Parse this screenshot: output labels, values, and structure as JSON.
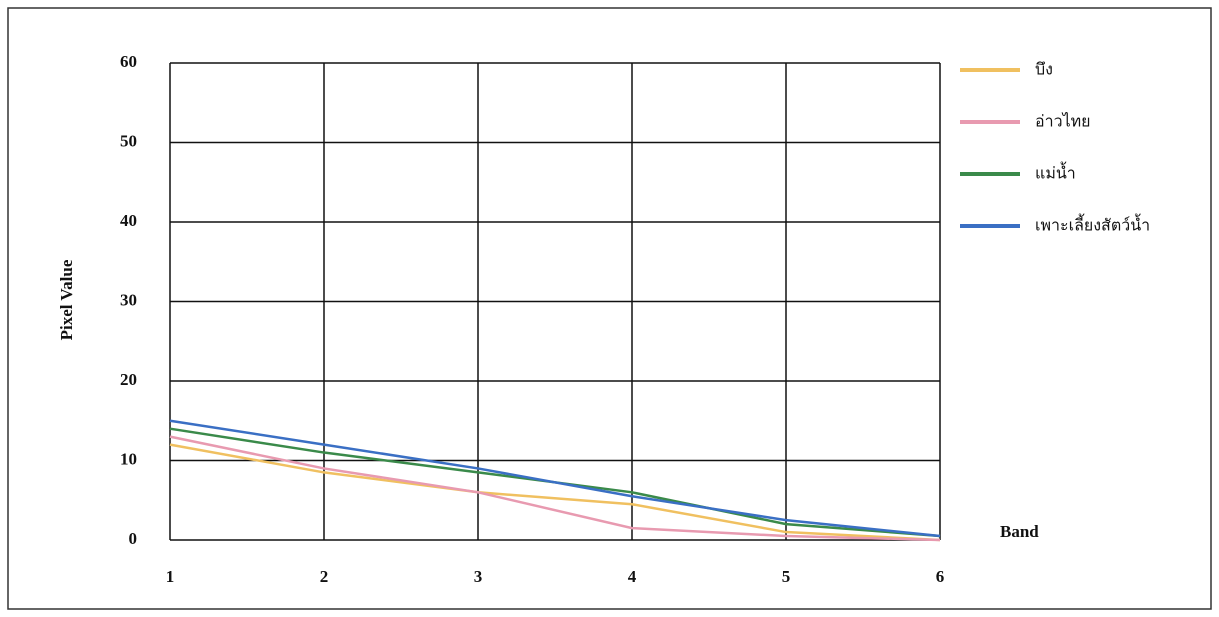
{
  "chart_data": {
    "type": "line",
    "x_label": "Band",
    "y_label": "Pixel Value",
    "x": [
      1,
      2,
      3,
      4,
      5,
      6
    ],
    "series": [
      {
        "name": "บึง",
        "color": "#f0c060",
        "values": [
          12,
          8.5,
          6,
          4.5,
          1,
          0
        ]
      },
      {
        "name": "อ่าวไทย",
        "color": "#e89ab0",
        "values": [
          13,
          9,
          6,
          1.5,
          0.5,
          0
        ]
      },
      {
        "name": "แม่น้ำ",
        "color": "#3a8a4a",
        "values": [
          14,
          11,
          8.5,
          6,
          2,
          0.5
        ]
      },
      {
        "name": "เพาะเลี้ยงสัตว์น้ำ",
        "color": "#3a6fc4",
        "values": [
          15,
          12,
          9,
          5.5,
          2.5,
          0.5
        ]
      }
    ],
    "xlim": [
      1,
      6
    ],
    "xticks": [
      1,
      2,
      3,
      4,
      5,
      6
    ],
    "ylim": [
      0,
      60
    ],
    "yticks": [
      0,
      10,
      20,
      30,
      40,
      50,
      60
    ],
    "grid": true
  }
}
